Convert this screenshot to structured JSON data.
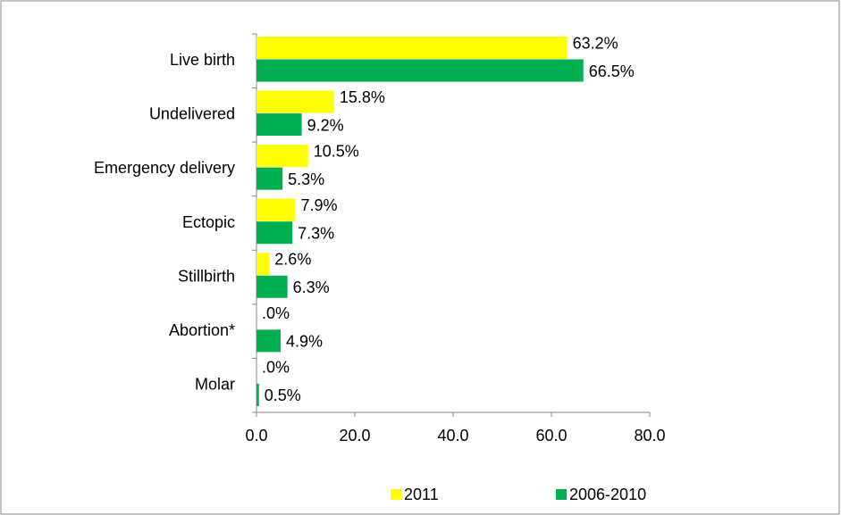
{
  "chart_data": {
    "type": "hbar",
    "categories": [
      "Live birth",
      "Undelivered",
      "Emergency delivery",
      "Ectopic",
      "Stillbirth",
      "Abortion*",
      "Molar"
    ],
    "series": [
      {
        "name": "2011",
        "color": "#ffff00",
        "values": [
          63.2,
          15.8,
          10.5,
          7.9,
          2.6,
          0,
          0
        ],
        "value_labels": [
          "63.2%",
          "15.8%",
          "10.5%",
          "7.9%",
          "2.6%",
          ".0%",
          ".0%"
        ]
      },
      {
        "name": "2006-2010",
        "color": "#00b050",
        "values": [
          66.5,
          9.2,
          5.3,
          7.3,
          6.3,
          4.9,
          0.5
        ],
        "value_labels": [
          "66.5%",
          "9.2%",
          "5.3%",
          "7.3%",
          "6.3%",
          "4.9%",
          "0.5%"
        ]
      }
    ],
    "xlim": [
      0,
      80
    ],
    "xticks": [
      {
        "value": 0,
        "label": "0.0"
      },
      {
        "value": 20,
        "label": "20.0"
      },
      {
        "value": 40,
        "label": "40.0"
      },
      {
        "value": 60,
        "label": "60.0"
      },
      {
        "value": 80,
        "label": "80.0"
      }
    ],
    "legend": "bottom"
  }
}
